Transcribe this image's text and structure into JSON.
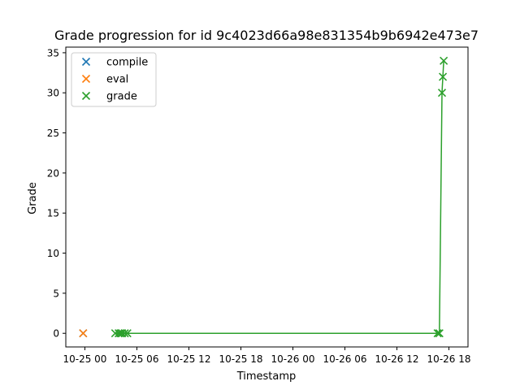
{
  "chart_data": {
    "type": "scatter",
    "title": "Grade progression for id 9c4023d66a98e831354b9b6942e473e7",
    "xlabel": "Timestamp",
    "ylabel": "Grade",
    "x_unit": "hours",
    "xlim": [
      -2.2,
      44.2
    ],
    "ylim": [
      -1.7,
      35.7
    ],
    "x_ticks": [
      {
        "x": 0,
        "label": "10-25 00"
      },
      {
        "x": 6,
        "label": "10-25 06"
      },
      {
        "x": 12,
        "label": "10-25 12"
      },
      {
        "x": 18,
        "label": "10-25 18"
      },
      {
        "x": 24,
        "label": "10-26 00"
      },
      {
        "x": 30,
        "label": "10-26 06"
      },
      {
        "x": 36,
        "label": "10-26 12"
      },
      {
        "x": 42,
        "label": "10-26 18"
      }
    ],
    "y_ticks": [
      0,
      5,
      10,
      15,
      20,
      25,
      30,
      35
    ],
    "legend_position": "top-left",
    "series": [
      {
        "name": "compile",
        "color": "#1f77b4",
        "marker": "x",
        "line": false,
        "points": [
          {
            "x": -0.2,
            "y": 0
          }
        ]
      },
      {
        "name": "eval",
        "color": "#ff7f0e",
        "marker": "x",
        "line": false,
        "points": [
          {
            "x": -0.2,
            "y": 0
          }
        ]
      },
      {
        "name": "grade",
        "color": "#2ca02c",
        "marker": "x",
        "line": true,
        "points": [
          {
            "x": 3.5,
            "y": 0
          },
          {
            "x": 3.9,
            "y": 0
          },
          {
            "x": 4.1,
            "y": 0
          },
          {
            "x": 4.3,
            "y": 0
          },
          {
            "x": 4.6,
            "y": 0
          },
          {
            "x": 4.9,
            "y": 0
          },
          {
            "x": 40.7,
            "y": 0
          },
          {
            "x": 40.9,
            "y": 0
          },
          {
            "x": 41.2,
            "y": 30
          },
          {
            "x": 41.3,
            "y": 32
          },
          {
            "x": 41.4,
            "y": 34
          }
        ]
      }
    ]
  }
}
